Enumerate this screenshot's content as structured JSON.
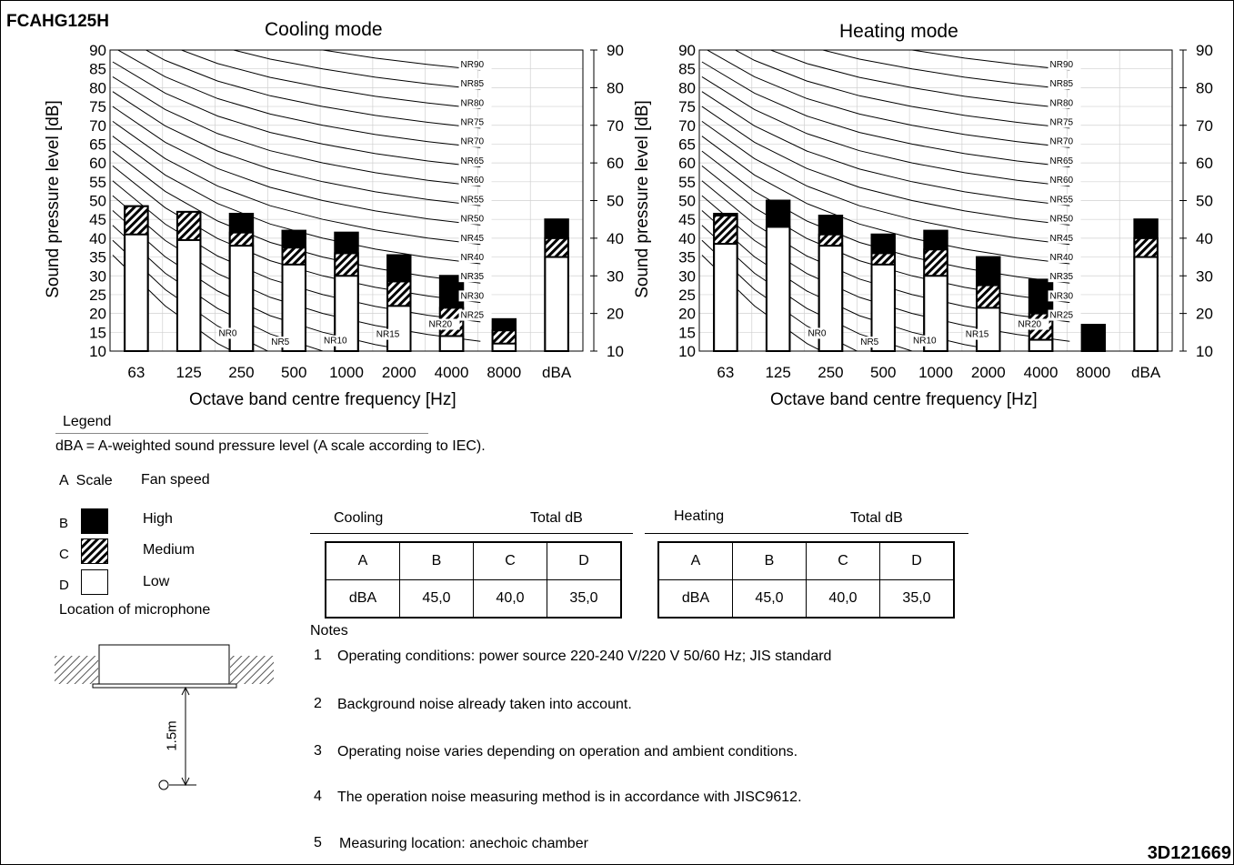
{
  "model": "FCAHG125H",
  "doc_number": "3D121669",
  "chart_data": [
    {
      "type": "bar",
      "title": "Cooling mode",
      "xlabel": "Octave band centre frequency [Hz]",
      "ylabel": "Sound pressure level [dB]",
      "ylim": [
        10,
        90
      ],
      "yticks_left": [
        "90",
        "85",
        "80",
        "75",
        "70",
        "65",
        "60",
        "55",
        "50",
        "45",
        "40",
        "35",
        "30",
        "25",
        "20",
        "15",
        "10"
      ],
      "yticks_right": [
        "90",
        "80",
        "70",
        "60",
        "50",
        "40",
        "30",
        "20",
        "10"
      ],
      "categories": [
        "63",
        "125",
        "250",
        "500",
        "1000",
        "2000",
        "4000",
        "8000",
        "dBA"
      ],
      "series": [
        {
          "name": "High",
          "values": [
            48.5,
            47,
            46.5,
            42,
            41.5,
            35.5,
            30,
            18.5,
            45
          ]
        },
        {
          "name": "Medium",
          "values": [
            48.5,
            47,
            41.5,
            37.5,
            36,
            28.5,
            21.5,
            15.5,
            40
          ]
        },
        {
          "name": "Low",
          "values": [
            41,
            39.5,
            38,
            33,
            30,
            22,
            14,
            12,
            35
          ]
        }
      ],
      "nr_labels": [
        "NR90",
        "NR85",
        "NR80",
        "NR75",
        "NR70",
        "NR65",
        "NR60",
        "NR55",
        "NR50",
        "NR45",
        "NR40",
        "NR35",
        "NR30",
        "NR25",
        "NR20",
        "NR15",
        "NR10",
        "NR5",
        "NR0"
      ]
    },
    {
      "type": "bar",
      "title": "Heating mode",
      "xlabel": "Octave band centre frequency [Hz]",
      "ylabel": "Sound pressure level [dB]",
      "ylim": [
        10,
        90
      ],
      "yticks_left": [
        "90",
        "85",
        "80",
        "75",
        "70",
        "65",
        "60",
        "55",
        "50",
        "45",
        "40",
        "35",
        "30",
        "25",
        "20",
        "15",
        "10"
      ],
      "yticks_right": [
        "90",
        "80",
        "70",
        "60",
        "50",
        "40",
        "30",
        "20",
        "10"
      ],
      "categories": [
        "63",
        "125",
        "250",
        "500",
        "1000",
        "2000",
        "4000",
        "8000",
        "dBA"
      ],
      "series": [
        {
          "name": "High",
          "values": [
            46.5,
            50,
            46,
            41,
            42,
            35,
            29,
            17,
            45
          ]
        },
        {
          "name": "Medium",
          "values": [
            46,
            43,
            41,
            36,
            37,
            27.5,
            20,
            10,
            40
          ]
        },
        {
          "name": "Low",
          "values": [
            38.5,
            43,
            38,
            33,
            30,
            21.5,
            13,
            10,
            35
          ]
        }
      ],
      "nr_labels": [
        "NR90",
        "NR85",
        "NR80",
        "NR75",
        "NR70",
        "NR65",
        "NR60",
        "NR55",
        "NR50",
        "NR45",
        "NR40",
        "NR35",
        "NR30",
        "NR25",
        "NR20",
        "NR15",
        "NR10",
        "NR5",
        "NR0"
      ]
    }
  ],
  "legend": {
    "title": "Legend",
    "note": "dBA = A-weighted sound pressure level (A scale according to IEC).",
    "scale_header": "A  Scale",
    "fan_header": "Fan speed",
    "rows": [
      {
        "key": "B",
        "label": "High"
      },
      {
        "key": "C",
        "label": "Medium"
      },
      {
        "key": "D",
        "label": "Low"
      }
    ],
    "microphone": "Location of microphone",
    "distance": "1.5m"
  },
  "tables": [
    {
      "mode": "Cooling",
      "total": "Total dB",
      "header": [
        "A",
        "B",
        "C",
        "D"
      ],
      "row": [
        "dBA",
        "45,0",
        "40,0",
        "35,0"
      ]
    },
    {
      "mode": "Heating",
      "total": "Total dB",
      "header": [
        "A",
        "B",
        "C",
        "D"
      ],
      "row": [
        "dBA",
        "45,0",
        "40,0",
        "35,0"
      ]
    }
  ],
  "notes": {
    "title": "Notes",
    "items": [
      {
        "num": "1",
        "text": "Operating conditions: power source 220-240 V/220 V 50/60 Hz; JIS standard"
      },
      {
        "num": "2",
        "text": "Background noise already taken into account."
      },
      {
        "num": "3",
        "text": "Operating noise varies depending on operation and ambient conditions."
      },
      {
        "num": "4",
        "text": "The operation noise measuring method is in accordance with JISC9612."
      },
      {
        "num": "5",
        "text": "Measuring location: anechoic chamber"
      }
    ]
  }
}
